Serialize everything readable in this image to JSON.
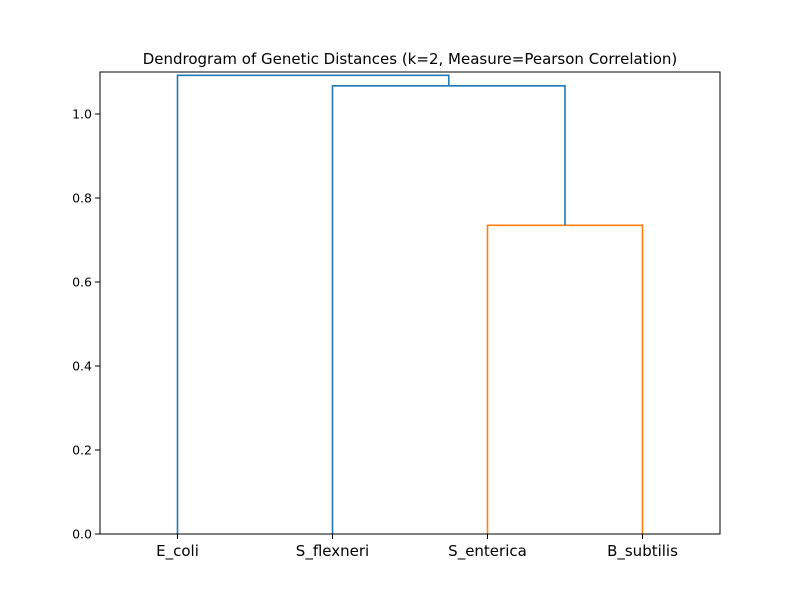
{
  "chart_data": {
    "type": "dendrogram",
    "title": "Dendrogram of Genetic Distances (k=2, Measure=Pearson Correlation)",
    "xlabel": "",
    "ylabel": "",
    "ylim": [
      0,
      1.1
    ],
    "yticks": [
      0.0,
      0.2,
      0.4,
      0.6,
      0.8,
      1.0
    ],
    "ytick_labels": [
      "0.0",
      "0.2",
      "0.4",
      "0.6",
      "0.8",
      "1.0"
    ],
    "leaves": [
      "E_coli",
      "S_flexneri",
      "S_enterica",
      "B_subtilis"
    ],
    "links": [
      {
        "left": [
          "S_enterica"
        ],
        "right": [
          "B_subtilis"
        ],
        "height": 0.735,
        "color": "#ff7f0e"
      },
      {
        "left": [
          "S_flexneri"
        ],
        "right": [
          "S_enterica",
          "B_subtilis"
        ],
        "height": 1.067,
        "color": "#1f77b4"
      },
      {
        "left": [
          "E_coli"
        ],
        "right": [
          "S_flexneri",
          "S_enterica",
          "B_subtilis"
        ],
        "height": 1.092,
        "color": "#1f77b4"
      }
    ],
    "grid": false,
    "legend": "none"
  }
}
